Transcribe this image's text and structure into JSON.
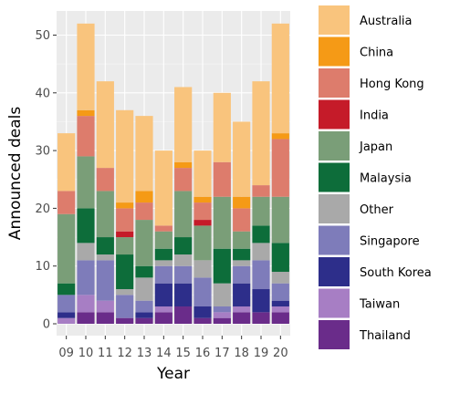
{
  "chart_data": {
    "type": "bar",
    "stacked": true,
    "xlabel": "Year",
    "ylabel": "Announced deals",
    "ylim": [
      0,
      55
    ],
    "yticks": [
      0,
      10,
      20,
      30,
      40,
      50
    ],
    "grid": true,
    "legend_position": "right",
    "categories": [
      "09",
      "10",
      "11",
      "12",
      "13",
      "14",
      "15",
      "16",
      "17",
      "18",
      "19",
      "20"
    ],
    "series": [
      {
        "name": "Thailand",
        "color": "#6a2c8a",
        "values": [
          0,
          2,
          2,
          1,
          1,
          2,
          3,
          1,
          1,
          2,
          2,
          2
        ]
      },
      {
        "name": "Taiwan",
        "color": "#a77ec4",
        "values": [
          1,
          3,
          2,
          0,
          0,
          1,
          0,
          0,
          1,
          1,
          0,
          1
        ]
      },
      {
        "name": "South Korea",
        "color": "#2d2e8a",
        "values": [
          1,
          0,
          0,
          0,
          1,
          4,
          4,
          2,
          0,
          4,
          4,
          1
        ]
      },
      {
        "name": "Singapore",
        "color": "#7e7cba",
        "values": [
          3,
          6,
          7,
          4,
          2,
          3,
          3,
          5,
          1,
          3,
          5,
          3
        ]
      },
      {
        "name": "Other",
        "color": "#a9a9a9",
        "values": [
          0,
          3,
          1,
          1,
          4,
          1,
          2,
          3,
          4,
          1,
          3,
          2
        ]
      },
      {
        "name": "Malaysia",
        "color": "#0d6d3a",
        "values": [
          2,
          6,
          3,
          6,
          2,
          2,
          3,
          0,
          6,
          2,
          3,
          5
        ]
      },
      {
        "name": "Japan",
        "color": "#7a9e78",
        "values": [
          12,
          9,
          8,
          3,
          8,
          3,
          8,
          6,
          9,
          3,
          5,
          8
        ]
      },
      {
        "name": "India",
        "color": "#c51b29",
        "values": [
          0,
          0,
          0,
          1,
          0,
          0,
          0,
          1,
          0,
          0,
          0,
          0
        ]
      },
      {
        "name": "Hong Kong",
        "color": "#dd7c6c",
        "values": [
          4,
          7,
          4,
          4,
          3,
          1,
          4,
          3,
          6,
          4,
          2,
          10
        ]
      },
      {
        "name": "China",
        "color": "#f59a16",
        "values": [
          0,
          1,
          0,
          1,
          2,
          0,
          1,
          1,
          0,
          2,
          0,
          1
        ]
      },
      {
        "name": "Australia",
        "color": "#f9c47d",
        "values": [
          10,
          15,
          15,
          16,
          13,
          13,
          13,
          8,
          12,
          13,
          18,
          19
        ]
      }
    ],
    "legend_order": [
      "Australia",
      "China",
      "Hong Kong",
      "India",
      "Japan",
      "Malaysia",
      "Other",
      "Singapore",
      "South Korea",
      "Taiwan",
      "Thailand"
    ]
  }
}
